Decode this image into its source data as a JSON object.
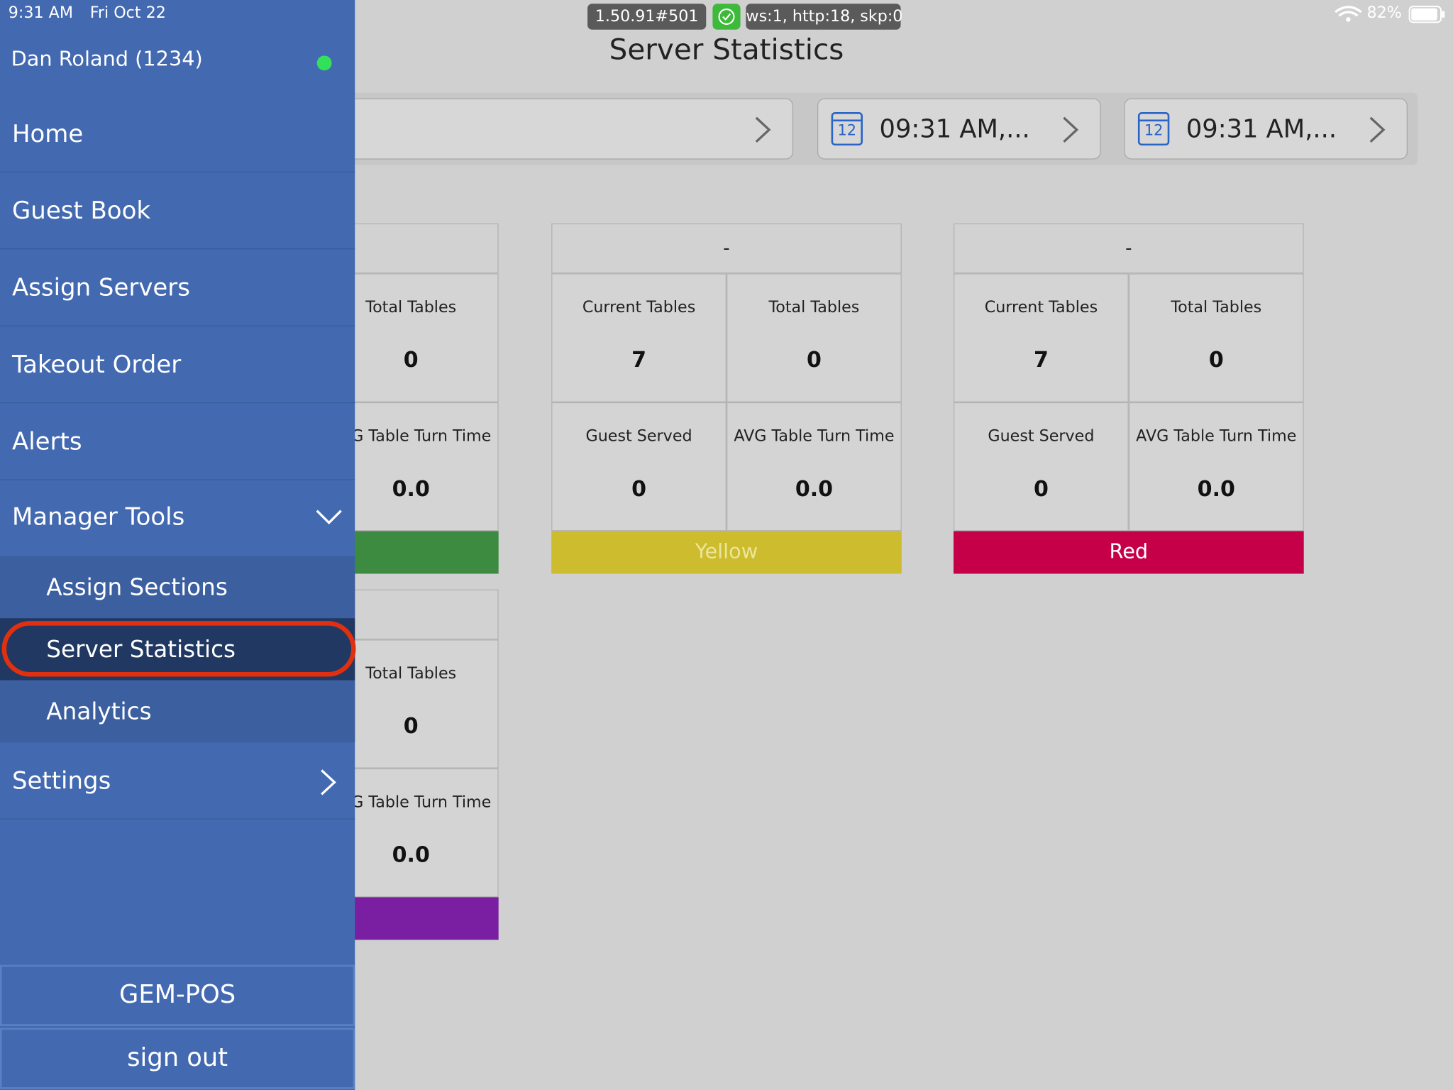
{
  "status_bar": {
    "time": "9:31 AM",
    "date": "Fri Oct 22",
    "version": "1.50.91#501",
    "stats": "ws:1, http:18, skp:0",
    "battery": "82%"
  },
  "header": {
    "title": "Server Statistics",
    "date_pickers": [
      {
        "icon": "12",
        "text": "09:31 AM,..."
      },
      {
        "icon": "12",
        "text": "09:31 AM,..."
      }
    ]
  },
  "cards": [
    {
      "cells": [
        {
          "label": "Total Tables",
          "value": "0"
        },
        {
          "label": "AVG Table Turn Time",
          "value": "0.0"
        }
      ],
      "color": "#3d8b40"
    },
    {
      "title": "-",
      "cells": [
        {
          "label": "Current Tables",
          "value": "7"
        },
        {
          "label": "Total Tables",
          "value": "0"
        },
        {
          "label": "Guest Served",
          "value": "0"
        },
        {
          "label": "AVG Table Turn Time",
          "value": "0.0"
        }
      ],
      "status": "Yellow",
      "color": "#cdbc2e",
      "status_text_color": "#ece59a"
    },
    {
      "title": "-",
      "cells": [
        {
          "label": "Current Tables",
          "value": "7"
        },
        {
          "label": "Total Tables",
          "value": "0"
        },
        {
          "label": "Guest Served",
          "value": "0"
        },
        {
          "label": "AVG Table Turn Time",
          "value": "0.0"
        }
      ],
      "status": "Red",
      "color": "#c60048",
      "status_text_color": "#ffffff"
    },
    {
      "cells": [
        {
          "label": "Total Tables",
          "value": "0"
        },
        {
          "label": "AVG Table Turn Time",
          "value": "0.0"
        }
      ],
      "color": "#7b1fa2"
    }
  ],
  "sidebar": {
    "user": "Dan Roland (1234)",
    "menu": [
      "Home",
      "Guest Book",
      "Assign Servers",
      "Takeout Order",
      "Alerts"
    ],
    "manager_tools": "Manager Tools",
    "submenu": [
      "Assign Sections",
      "Server Statistics",
      "Analytics"
    ],
    "settings": "Settings",
    "footer": [
      "GEM-POS",
      "sign out"
    ]
  }
}
